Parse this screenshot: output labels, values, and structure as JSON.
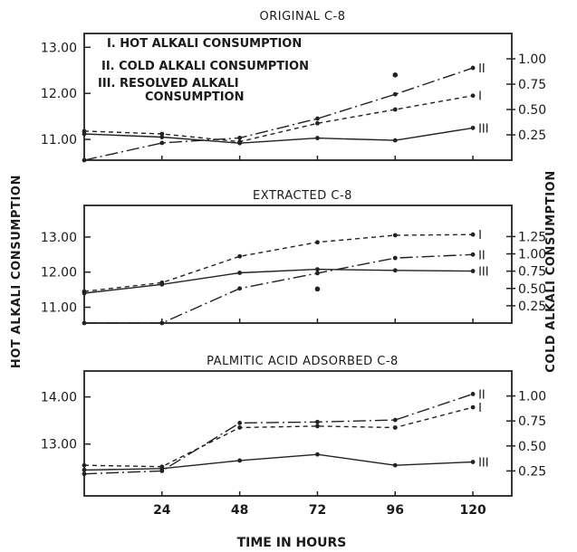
{
  "figure": {
    "y_left_title": "HOT ALKALI CONSUMPTION",
    "y_right_title": "COLD ALKALI CONSUMPTION",
    "x_title": "TIME IN HOURS",
    "legend": [
      "I. HOT ALKALI CONSUMPTION",
      "II. COLD ALKALI CONSUMPTION",
      "III. RESOLVED ALKALI",
      "CONSUMPTION"
    ]
  },
  "chart_data": [
    {
      "type": "line",
      "title": "ORIGINAL C-8",
      "xlim": [
        0,
        132
      ],
      "x": [
        0,
        24,
        48,
        72,
        96,
        120
      ],
      "left_axis": {
        "ticks": [
          11,
          12,
          13
        ],
        "tick_labels": [
          "11.00",
          "12.00",
          "13.00"
        ],
        "range": [
          10.55,
          13.3
        ]
      },
      "right_axis": {
        "ticks": [
          0.25,
          0.5,
          0.75,
          1.0
        ],
        "tick_labels": [
          "0.25",
          "0.50",
          "0.75",
          "1.00"
        ],
        "range": [
          0.0,
          1.25
        ]
      },
      "series": [
        {
          "name": "I",
          "axis": "left",
          "style": "dashed",
          "values": [
            11.18,
            11.12,
            10.95,
            11.35,
            11.65,
            11.95
          ]
        },
        {
          "name": "II",
          "axis": "right",
          "style": "dashdot",
          "values": [
            0.0,
            0.17,
            0.22,
            0.41,
            0.65,
            0.91
          ]
        },
        {
          "name": "III",
          "axis": "left",
          "style": "solid",
          "values": [
            11.12,
            11.05,
            10.92,
            11.03,
            10.98,
            11.25
          ]
        }
      ],
      "outliers": [
        {
          "x": 96,
          "y": 12.4,
          "axis": "left"
        }
      ]
    },
    {
      "type": "line",
      "title": "EXTRACTED C-8",
      "xlim": [
        0,
        132
      ],
      "x": [
        0,
        24,
        48,
        72,
        96,
        120
      ],
      "left_axis": {
        "ticks": [
          11,
          12,
          13
        ],
        "tick_labels": [
          "11.00",
          "12.00",
          "13.00"
        ],
        "range": [
          10.55,
          13.9
        ]
      },
      "right_axis": {
        "ticks": [
          0.25,
          0.5,
          0.75,
          1.0,
          1.25
        ],
        "tick_labels": [
          "0.25",
          "0.50",
          "0.75",
          "1.00",
          "1.25"
        ],
        "range": [
          0.0,
          1.7
        ]
      },
      "series": [
        {
          "name": "I",
          "axis": "left",
          "style": "dashed",
          "values": [
            11.45,
            11.7,
            12.45,
            12.85,
            13.05,
            13.07
          ]
        },
        {
          "name": "II",
          "axis": "right",
          "style": "dashdot",
          "values": [
            0.0,
            0.0,
            0.5,
            0.72,
            0.94,
            0.99
          ]
        },
        {
          "name": "III",
          "axis": "left",
          "style": "solid",
          "values": [
            11.4,
            11.65,
            11.98,
            12.08,
            12.05,
            12.03
          ]
        }
      ],
      "outliers": [
        {
          "x": 72,
          "y": 11.52,
          "axis": "left"
        }
      ]
    },
    {
      "type": "line",
      "title": "PALMITIC ACID ADSORBED C-8",
      "xlim": [
        0,
        132
      ],
      "x": [
        0,
        24,
        48,
        72,
        96,
        120
      ],
      "left_axis": {
        "ticks": [
          13,
          14
        ],
        "tick_labels": [
          "13.00",
          "14.00"
        ],
        "range": [
          11.9,
          14.55
        ]
      },
      "right_axis": {
        "ticks": [
          0.25,
          0.5,
          0.75,
          1.0
        ],
        "tick_labels": [
          "0.25",
          "0.50",
          "0.75",
          "1.00"
        ],
        "range": [
          0.0,
          1.25
        ]
      },
      "series": [
        {
          "name": "I",
          "axis": "left",
          "style": "dashed",
          "values": [
            12.55,
            12.52,
            13.35,
            13.38,
            13.35,
            13.78
          ]
        },
        {
          "name": "II",
          "axis": "right",
          "style": "dashdot",
          "values": [
            0.22,
            0.25,
            0.73,
            0.74,
            0.76,
            1.02
          ]
        },
        {
          "name": "III",
          "axis": "left",
          "style": "solid",
          "values": [
            12.45,
            12.48,
            12.65,
            12.78,
            12.55,
            12.62
          ]
        }
      ]
    }
  ]
}
